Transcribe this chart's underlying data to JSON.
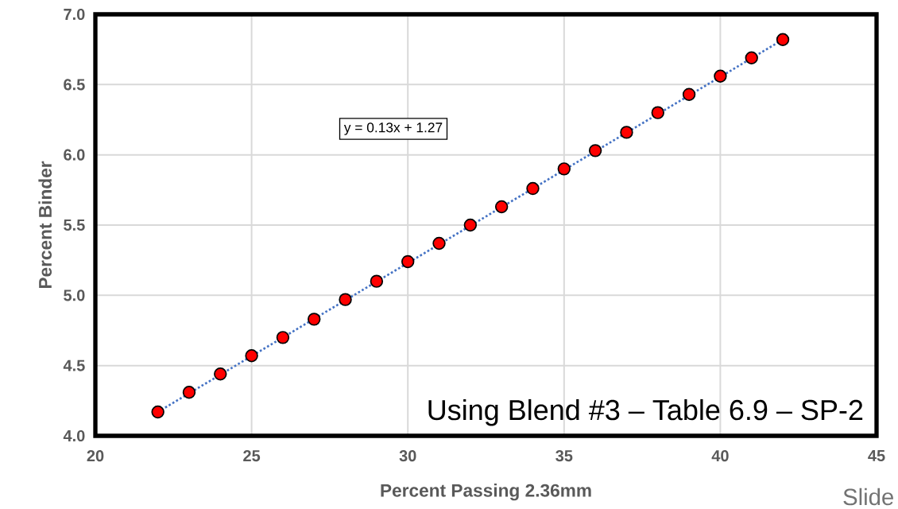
{
  "chart_data": {
    "type": "scatter",
    "xlabel": "Percent Passing 2.36mm",
    "ylabel": "Percent Binder",
    "xlim": [
      20,
      45
    ],
    "xticks": [
      20,
      25,
      30,
      35,
      40,
      45
    ],
    "ylim": [
      4.0,
      7.0
    ],
    "yticks": [
      {
        "value": 4.0,
        "label": "4.0"
      },
      {
        "value": 4.5,
        "label": "4.5"
      },
      {
        "value": 5.0,
        "label": "5.0"
      },
      {
        "value": 5.5,
        "label": "5.5"
      },
      {
        "value": 6.0,
        "label": "6.0"
      },
      {
        "value": 6.5,
        "label": "6.5"
      },
      {
        "value": 7.0,
        "label": "7.0"
      }
    ],
    "grid": true,
    "marker": "circle",
    "series": [
      {
        "color": "#ff0000",
        "x": [
          22,
          23,
          24,
          25,
          26,
          27,
          28,
          29,
          30,
          31,
          32,
          33,
          34,
          35,
          36,
          37,
          38,
          39,
          40,
          41,
          42
        ],
        "values": [
          4.17,
          4.31,
          4.44,
          4.57,
          4.7,
          4.83,
          4.97,
          5.1,
          5.24,
          5.37,
          5.5,
          5.63,
          5.76,
          5.9,
          6.03,
          6.16,
          6.3,
          6.43,
          6.56,
          6.69,
          6.82
        ]
      },
      {
        "type": "line",
        "color": "#4472c4",
        "line_style": "dotted",
        "marker": "none",
        "x": [
          22,
          42
        ],
        "values": [
          4.17,
          6.82
        ]
      }
    ],
    "annotations": [
      "y = 0.13x + 1.27",
      "Using Blend #3 – Table 6.9 – SP-2",
      "Slide"
    ]
  }
}
